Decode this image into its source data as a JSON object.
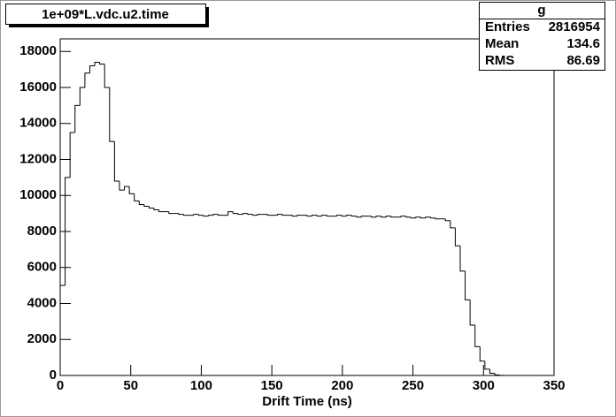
{
  "chart_data": {
    "type": "histogram",
    "title": "1e+09*L.vdc.u2.time",
    "x_label": "Drift Time (ns)",
    "bins": [
      0,
      3.5,
      7,
      10.5,
      14,
      17.5,
      21,
      24.5,
      28,
      31.5,
      35,
      38.5,
      42,
      45.5,
      49,
      52.5,
      56,
      59.5,
      63,
      66.5,
      70,
      73.5,
      77,
      80.5,
      84,
      87.5,
      91,
      94.5,
      98,
      101.5,
      105,
      108.5,
      112,
      115.5,
      119,
      122.5,
      126,
      129.5,
      133,
      136.5,
      140,
      143.5,
      147,
      150.5,
      154,
      157.5,
      161,
      164.5,
      168,
      171.5,
      175,
      178.5,
      182,
      185.5,
      189,
      192.5,
      196,
      199.5,
      203,
      206.5,
      210,
      213.5,
      217,
      220.5,
      224,
      227.5,
      231,
      234.5,
      238,
      241.5,
      245,
      248.5,
      252,
      255.5,
      259,
      262.5,
      266,
      269.5,
      273,
      276.5,
      280,
      283.5,
      287,
      290.5,
      294,
      297.5,
      301,
      304.5,
      308,
      311.5,
      315,
      318.5,
      322,
      325.5,
      329,
      332.5,
      336,
      339.5,
      343,
      346.5,
      350
    ],
    "values": [
      5000,
      11000,
      13500,
      15000,
      16000,
      16800,
      17200,
      17400,
      17300,
      16000,
      13000,
      10800,
      10300,
      10500,
      10100,
      9700,
      9500,
      9400,
      9300,
      9200,
      9100,
      9100,
      9000,
      9000,
      8950,
      8900,
      8900,
      8950,
      8900,
      8850,
      8900,
      8950,
      8900,
      8900,
      9100,
      9000,
      8950,
      9000,
      8950,
      8900,
      8950,
      8950,
      8900,
      8900,
      8950,
      8900,
      8900,
      8850,
      8900,
      8900,
      8850,
      8900,
      8850,
      8900,
      8850,
      8850,
      8900,
      8850,
      8900,
      8850,
      8800,
      8850,
      8850,
      8800,
      8850,
      8800,
      8850,
      8800,
      8800,
      8850,
      8800,
      8750,
      8800,
      8750,
      8800,
      8750,
      8700,
      8700,
      8600,
      8200,
      7200,
      5800,
      4200,
      2800,
      1600,
      800,
      350,
      120,
      30,
      5,
      0,
      0,
      0,
      0,
      0,
      0,
      0,
      0,
      0,
      0
    ],
    "color": "#000000",
    "xlim": [
      0,
      350
    ],
    "xticks": [
      0,
      50,
      100,
      150,
      200,
      250,
      300,
      350
    ],
    "ylim": [
      0,
      18700
    ],
    "yticks": [
      0,
      2000,
      4000,
      6000,
      8000,
      10000,
      12000,
      14000,
      16000,
      18000
    ],
    "stats": {
      "title": "g",
      "rows": [
        {
          "label": "Entries",
          "value": 2816954
        },
        {
          "label": "Mean",
          "value": 134.6
        },
        {
          "label": "RMS",
          "value": 86.69
        }
      ]
    }
  }
}
